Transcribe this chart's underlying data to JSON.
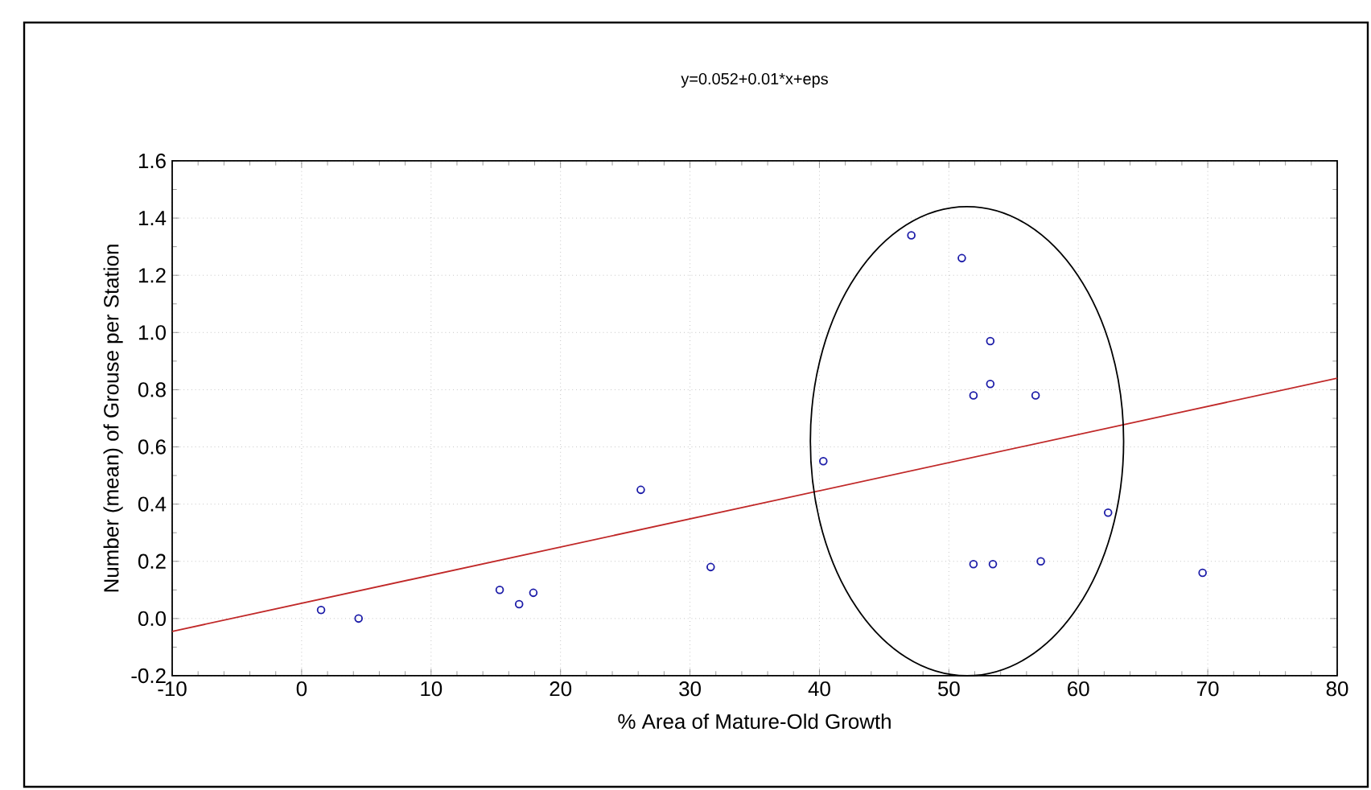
{
  "chart_data": {
    "type": "scatter",
    "title": "y=0.052+0.01*x+eps",
    "xlabel": "% Area of Mature-Old Growth",
    "ylabel": "Number (mean) of Grouse per Station",
    "xlim": [
      -10,
      80
    ],
    "ylim": [
      -0.2,
      1.6
    ],
    "xticks": [
      -10,
      0,
      10,
      20,
      30,
      40,
      50,
      60,
      70,
      80
    ],
    "yticks": [
      -0.2,
      {
        "value": 0,
        "label": "0.0"
      },
      0.2,
      0.4,
      0.6,
      0.8,
      {
        "value": 1,
        "label": "1.0"
      },
      1.2,
      1.4,
      1.6
    ],
    "grid": true,
    "series": [
      {
        "marker": "circle",
        "color": "#1c1ca8",
        "x": [
          1.5,
          4.4,
          15.3,
          16.8,
          17.9,
          26.2,
          31.6,
          40.3,
          47.1,
          51.0,
          53.2,
          53.2,
          51.9,
          56.7,
          62.3,
          51.9,
          53.4,
          57.1,
          69.6
        ],
        "values": [
          0.03,
          0.0,
          0.1,
          0.05,
          0.09,
          0.45,
          0.18,
          0.55,
          1.34,
          1.26,
          0.97,
          0.82,
          0.78,
          0.78,
          0.37,
          0.19,
          0.19,
          0.2,
          0.16
        ]
      },
      {
        "type": "line",
        "marker": "none",
        "color": "#c02828",
        "x": [
          -10,
          80
        ],
        "values": [
          -0.045,
          0.84
        ]
      }
    ]
  }
}
